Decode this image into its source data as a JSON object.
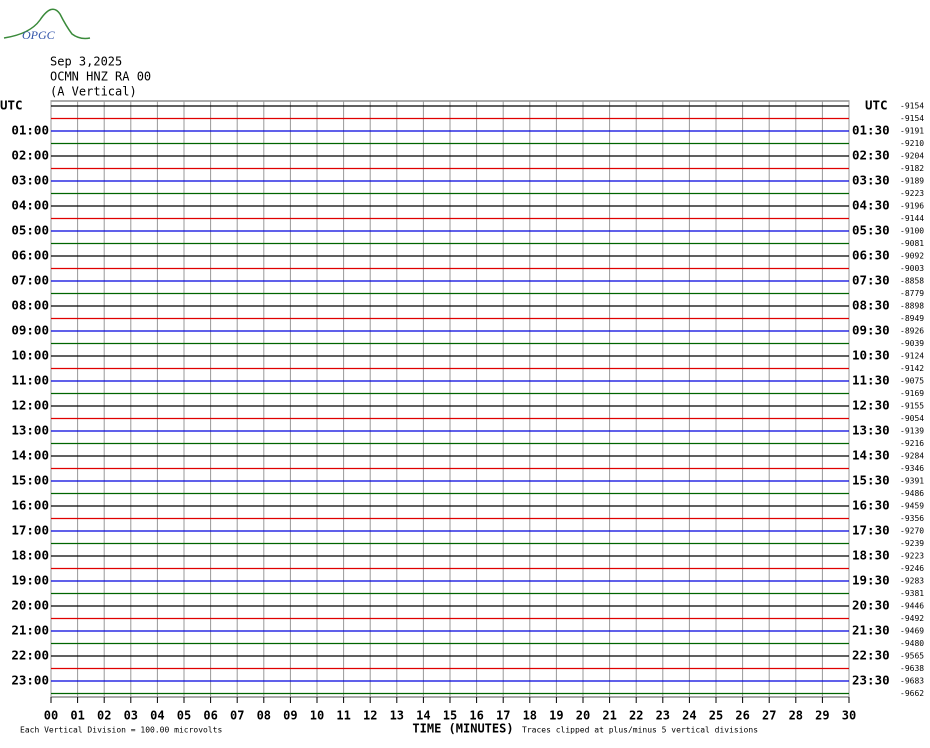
{
  "logo_text": "OPGC",
  "header": {
    "date": "Sep 3,2025",
    "station": "OCMN HNZ RA 00",
    "component": "(A Vertical)"
  },
  "left_labels": [
    "UTC",
    "01:00",
    "02:00",
    "03:00",
    "04:00",
    "05:00",
    "06:00",
    "07:00",
    "08:00",
    "09:00",
    "10:00",
    "11:00",
    "12:00",
    "13:00",
    "14:00",
    "15:00",
    "16:00",
    "17:00",
    "18:00",
    "19:00",
    "20:00",
    "21:00",
    "22:00",
    "23:00"
  ],
  "right_labels": [
    "UTC",
    "01:30",
    "02:30",
    "03:30",
    "04:30",
    "05:30",
    "06:30",
    "07:30",
    "08:30",
    "09:30",
    "10:30",
    "11:30",
    "12:30",
    "13:30",
    "14:30",
    "15:30",
    "16:30",
    "17:30",
    "18:30",
    "19:30",
    "20:30",
    "21:30",
    "22:30",
    "23:30"
  ],
  "trace_offsets": [
    "-9154",
    "-9154",
    "-9191",
    "-9210",
    "-9204",
    "-9182",
    "-9189",
    "-9223",
    "-9196",
    "-9144",
    "-9100",
    "-9081",
    "-9092",
    "-9003",
    "-8858",
    "-8779",
    "-8898",
    "-8949",
    "-8926",
    "-9039",
    "-9124",
    "-9142",
    "-9075",
    "-9169",
    "-9155",
    "-9054",
    "-9139",
    "-9216",
    "-9284",
    "-9346",
    "-9391",
    "-9486",
    "-9459",
    "-9356",
    "-9270",
    "-9239",
    "-9223",
    "-9246",
    "-9283",
    "-9381",
    "-9446",
    "-9492",
    "-9469",
    "-9480",
    "-9565",
    "-9638",
    "-9683",
    "-9662"
  ],
  "trace_colors": [
    "#000000",
    "#e00000",
    "#0000dd",
    "#006400"
  ],
  "x_axis": {
    "ticks": [
      "00",
      "01",
      "02",
      "03",
      "04",
      "05",
      "06",
      "07",
      "08",
      "09",
      "10",
      "11",
      "12",
      "13",
      "14",
      "15",
      "16",
      "17",
      "18",
      "19",
      "20",
      "21",
      "22",
      "23",
      "24",
      "25",
      "26",
      "27",
      "28",
      "29",
      "30"
    ],
    "label": "TIME (MINUTES)"
  },
  "footer": {
    "scale": "Each Vertical Division =  100.00 microvolts",
    "clip": "Traces clipped at plus/minus 5 vertical divisions"
  }
}
